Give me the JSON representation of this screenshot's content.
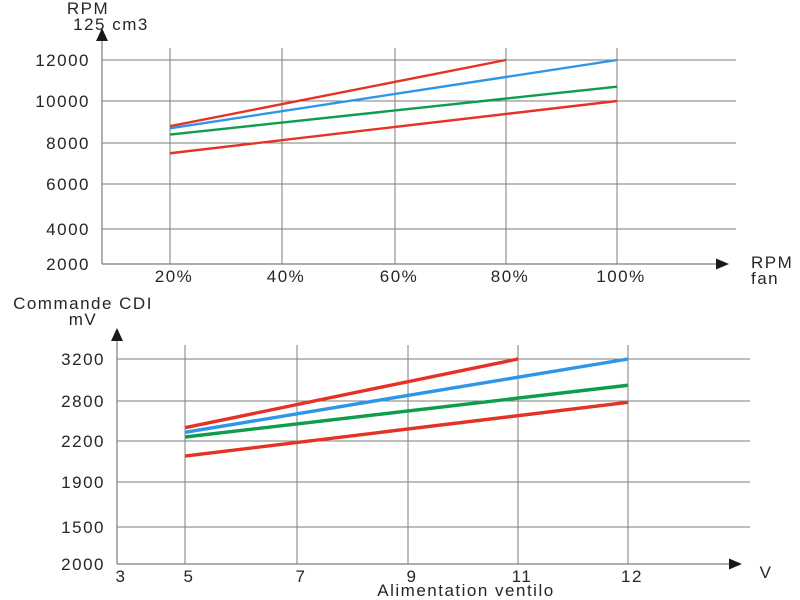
{
  "colors": {
    "grid": "#7d7d7d",
    "axis": "#7d7d7d",
    "arrow": "#1a1a1a",
    "text": "#262626",
    "red": "#e63226",
    "blue": "#2e96e8",
    "green": "#0d9d4d"
  },
  "chart_data": [
    {
      "type": "line",
      "title": "RPM 125 cm3 vs RPM fan",
      "y_axis_title_lines": [
        "RPM",
        "125 cm3"
      ],
      "x_axis_title_lines": [
        "RPM",
        "fan"
      ],
      "x_ticks": [
        "20%",
        "40%",
        "60%",
        "80%",
        "100%"
      ],
      "y_ticks": [
        "12000",
        "10000",
        "8000",
        "6000",
        "4000",
        "2000"
      ],
      "ylim": [
        2000,
        12000
      ],
      "grid": "on",
      "legend": "none",
      "series": [
        {
          "name": "red-upper",
          "color": "#e63226",
          "points": [
            [
              20,
              8800
            ],
            [
              80,
              12000
            ]
          ]
        },
        {
          "name": "blue",
          "color": "#2e96e8",
          "points": [
            [
              20,
              8700
            ],
            [
              100,
              12000
            ]
          ]
        },
        {
          "name": "green",
          "color": "#0d9d4d",
          "points": [
            [
              20,
              8400
            ],
            [
              100,
              10700
            ]
          ]
        },
        {
          "name": "red-lower",
          "color": "#e63226",
          "points": [
            [
              20,
              7500
            ],
            [
              100,
              10000
            ]
          ]
        }
      ]
    },
    {
      "type": "line",
      "title": "Commande CDI mV vs Alimentation ventilo",
      "y_axis_title_lines": [
        "Commande CDI",
        "mV"
      ],
      "x_axis_title_lines": [
        "V"
      ],
      "x_axis_caption": "Alimentation ventilo",
      "x_ticks": [
        "3",
        "5",
        "7",
        "9",
        "11",
        "12"
      ],
      "y_ticks": [
        "3200",
        "2800",
        "2200",
        "1900",
        "1500",
        "2000"
      ],
      "grid": "on",
      "legend": "none",
      "series": [
        {
          "name": "red-upper",
          "color": "#e63226",
          "points": [
            [
              5,
              2400
            ],
            [
              11,
              3200
            ]
          ]
        },
        {
          "name": "blue",
          "color": "#2e96e8",
          "points": [
            [
              5,
              2330
            ],
            [
              12,
              3200
            ]
          ]
        },
        {
          "name": "green",
          "color": "#0d9d4d",
          "points": [
            [
              5,
              2260
            ],
            [
              12,
              2950
            ]
          ]
        },
        {
          "name": "red-lower",
          "color": "#e63226",
          "points": [
            [
              5,
              2090
            ],
            [
              12,
              2780
            ]
          ]
        }
      ]
    }
  ]
}
